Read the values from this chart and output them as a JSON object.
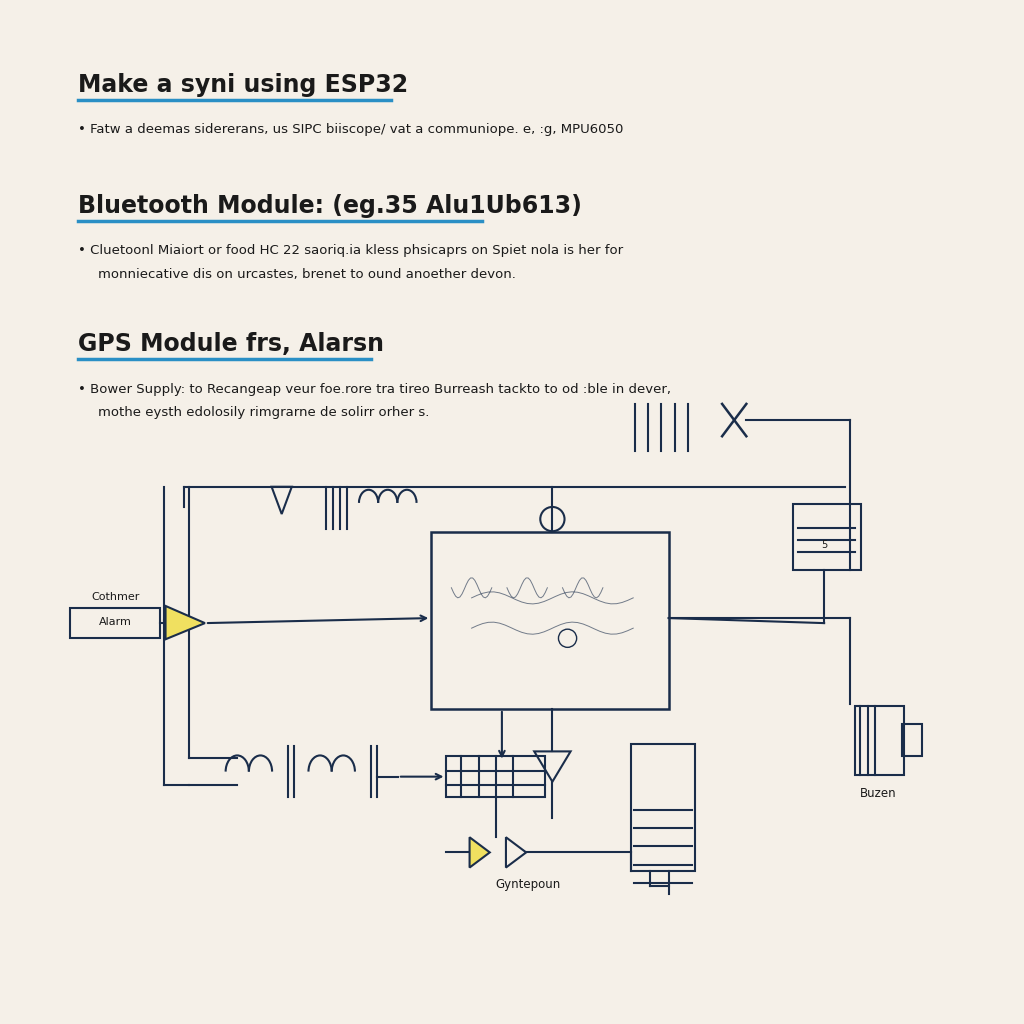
{
  "bg_color": "#f5f0e8",
  "title1": "Make a syni using ESP32",
  "title2": "Bluetooth Module: (eg.35 Alu1Ub613)",
  "title3": "GPS Module frs, Alarsn",
  "bullet1": "Fatw a deemas sidererans, us SIPC biiscope/ vat a communiope. e, :g, MPU6050",
  "bullet2_line1": "Cluetoonl Miaiort or food HC 22 saoriq.ia kless phsicaprs on Spiet nola is her for",
  "bullet2_line2": "monniecative dis on urcastes, brenet to ound anoether devon.",
  "bullet3_line1": "Bower Supply: to Recangeap veur foe.rore tra tireo Burreash tackto to od :ble in dever,",
  "bullet3_line2": "mothe eysth edolosily rimgrarne de solirr orher s.",
  "line_color": "#2a8fc5",
  "text_color": "#1a1a1a",
  "diagram_color": "#1a2d4a",
  "yellow_color": "#f0e060"
}
